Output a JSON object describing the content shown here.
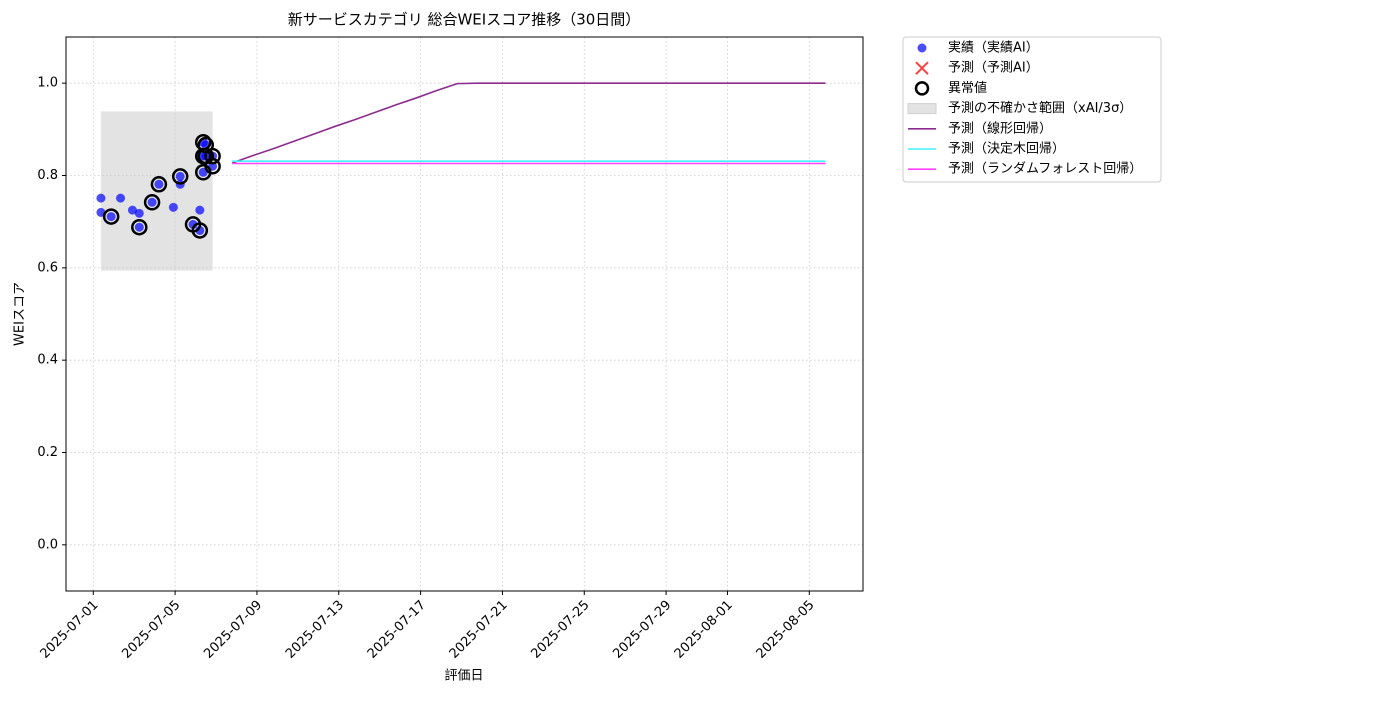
{
  "chart_data": {
    "type": "line",
    "title": "新サービスカテゴリ 総合WEIスコア推移（30日間）",
    "x_label": "評価日",
    "y_label": "WEIスコア",
    "xlim": [
      "2025-06-29T16:00",
      "2025-08-07T15:00"
    ],
    "ylim": [
      -0.1,
      1.1
    ],
    "xticks": [
      "2025-07-01",
      "2025-07-05",
      "2025-07-09",
      "2025-07-13",
      "2025-07-17",
      "2025-07-21",
      "2025-07-25",
      "2025-07-29",
      "2025-08-01",
      "2025-08-05"
    ],
    "yticks": [
      {
        "value": 0,
        "label": "0.0"
      },
      0.2,
      0.4,
      0.6,
      0.8,
      {
        "value": 1,
        "label": "1.0"
      }
    ],
    "grid": true,
    "legend": "outside upper right",
    "series": [
      {
        "name": "実績（実績AI）",
        "kind": "scatter",
        "color": "#0000ff",
        "x": [
          "2025-07-01T09:00",
          "2025-07-01T09:00",
          "2025-07-01T21:00",
          "2025-07-02T08:00",
          "2025-07-02T22:00",
          "2025-07-03T06:00",
          "2025-07-03T06:00",
          "2025-07-03T21:00",
          "2025-07-04T05:00",
          "2025-07-04T22:00",
          "2025-07-05T06:00",
          "2025-07-05T06:00",
          "2025-07-05T21:00",
          "2025-07-06T05:00",
          "2025-07-06T05:00",
          "2025-07-06T09:00",
          "2025-07-06T12:00",
          "2025-07-06T09:00",
          "2025-07-06T09:00",
          "2025-07-06T12:00",
          "2025-07-06T20:00",
          "2025-07-06T20:00"
        ],
        "values": [
          0.751,
          0.72,
          0.711,
          0.751,
          0.725,
          0.718,
          0.688,
          0.742,
          0.781,
          0.731,
          0.798,
          0.781,
          0.694,
          0.725,
          0.681,
          0.872,
          0.866,
          0.842,
          0.807,
          0.842,
          0.842,
          0.82
        ]
      },
      {
        "name": "予測（予測AI）",
        "kind": "cross",
        "color": "#ff0000",
        "x": [],
        "values": []
      },
      {
        "name": "異常値",
        "kind": "ring",
        "color": "#000000",
        "x": [
          "2025-07-01T21:00",
          "2025-07-03T06:00",
          "2025-07-03T21:00",
          "2025-07-04T05:00",
          "2025-07-05T06:00",
          "2025-07-05T21:00",
          "2025-07-06T05:00",
          "2025-07-06T09:00",
          "2025-07-06T12:00",
          "2025-07-06T09:00",
          "2025-07-06T09:00",
          "2025-07-06T12:00",
          "2025-07-06T20:00",
          "2025-07-06T20:00"
        ],
        "values": [
          0.711,
          0.688,
          0.742,
          0.781,
          0.798,
          0.694,
          0.681,
          0.872,
          0.866,
          0.842,
          0.807,
          0.842,
          0.842,
          0.82
        ]
      },
      {
        "name": "予測の不確かさ範囲（xAI/3σ）",
        "kind": "band",
        "color": "#e3e3e3",
        "x": [
          "2025-07-01T09:00",
          "2025-07-06T20:00"
        ],
        "lower": [
          0.594,
          0.594
        ],
        "upper": [
          0.939,
          0.939
        ]
      },
      {
        "name": "予測（線形回帰）",
        "kind": "line",
        "color": "#8e2b8e",
        "x": [
          "2025-07-07T19:00",
          "2025-07-08T19:00",
          "2025-07-09T19:00",
          "2025-07-10T19:00",
          "2025-07-11T19:00",
          "2025-07-12T19:00",
          "2025-07-13T19:00",
          "2025-07-14T19:00",
          "2025-07-15T19:00",
          "2025-07-16T19:00",
          "2025-07-17T19:00",
          "2025-07-18T19:00",
          "2025-07-19T19:00",
          "2025-07-20T19:00",
          "2025-07-21T19:00",
          "2025-07-22T19:00",
          "2025-07-23T19:00",
          "2025-07-24T19:00",
          "2025-07-25T19:00",
          "2025-07-26T19:00",
          "2025-07-27T19:00",
          "2025-07-28T19:00",
          "2025-07-29T19:00",
          "2025-07-30T19:00",
          "2025-07-31T19:00",
          "2025-08-01T19:00",
          "2025-08-02T19:00",
          "2025-08-03T19:00",
          "2025-08-04T19:00",
          "2025-08-05T19:00"
        ],
        "values": [
          0.827,
          0.843,
          0.858,
          0.874,
          0.89,
          0.906,
          0.921,
          0.937,
          0.953,
          0.968,
          0.984,
          0.999,
          1,
          1,
          1,
          1,
          1,
          1,
          1,
          1,
          1,
          1,
          1,
          1,
          1,
          1,
          1,
          1,
          1,
          1
        ]
      },
      {
        "name": "予測（決定木回帰）",
        "kind": "line",
        "color": "#40f0ff",
        "x": [
          "2025-07-07T19:00",
          "2025-07-08T19:00",
          "2025-07-09T19:00",
          "2025-07-10T19:00",
          "2025-07-11T19:00",
          "2025-07-12T19:00",
          "2025-07-13T19:00",
          "2025-07-14T19:00",
          "2025-07-15T19:00",
          "2025-07-16T19:00",
          "2025-07-17T19:00",
          "2025-07-18T19:00",
          "2025-07-19T19:00",
          "2025-07-20T19:00",
          "2025-07-21T19:00",
          "2025-07-22T19:00",
          "2025-07-23T19:00",
          "2025-07-24T19:00",
          "2025-07-25T19:00",
          "2025-07-26T19:00",
          "2025-07-27T19:00",
          "2025-07-28T19:00",
          "2025-07-29T19:00",
          "2025-07-30T19:00",
          "2025-07-31T19:00",
          "2025-08-01T19:00",
          "2025-08-02T19:00",
          "2025-08-03T19:00",
          "2025-08-04T19:00",
          "2025-08-05T19:00"
        ],
        "values": [
          0.831,
          0.831,
          0.831,
          0.831,
          0.831,
          0.831,
          0.831,
          0.831,
          0.831,
          0.831,
          0.831,
          0.831,
          0.831,
          0.831,
          0.831,
          0.831,
          0.831,
          0.831,
          0.831,
          0.831,
          0.831,
          0.831,
          0.831,
          0.831,
          0.831,
          0.831,
          0.831,
          0.831,
          0.831,
          0.831
        ]
      },
      {
        "name": "予測（ランダムフォレスト回帰）",
        "kind": "line",
        "color": "#ff40ff",
        "x": [
          "2025-07-07T19:00",
          "2025-07-08T19:00",
          "2025-07-09T19:00",
          "2025-07-10T19:00",
          "2025-07-11T19:00",
          "2025-07-12T19:00",
          "2025-07-13T19:00",
          "2025-07-14T19:00",
          "2025-07-15T19:00",
          "2025-07-16T19:00",
          "2025-07-17T19:00",
          "2025-07-18T19:00",
          "2025-07-19T19:00",
          "2025-07-20T19:00",
          "2025-07-21T19:00",
          "2025-07-22T19:00",
          "2025-07-23T19:00",
          "2025-07-24T19:00",
          "2025-07-25T19:00",
          "2025-07-26T19:00",
          "2025-07-27T19:00",
          "2025-07-28T19:00",
          "2025-07-29T19:00",
          "2025-07-30T19:00",
          "2025-07-31T19:00",
          "2025-08-01T19:00",
          "2025-08-02T19:00",
          "2025-08-03T19:00",
          "2025-08-04T19:00",
          "2025-08-05T19:00"
        ],
        "values": [
          0.826,
          0.826,
          0.826,
          0.826,
          0.826,
          0.826,
          0.826,
          0.826,
          0.826,
          0.826,
          0.826,
          0.826,
          0.826,
          0.826,
          0.826,
          0.826,
          0.826,
          0.826,
          0.826,
          0.826,
          0.826,
          0.826,
          0.826,
          0.826,
          0.826,
          0.826,
          0.826,
          0.826,
          0.826,
          0.826
        ]
      }
    ]
  }
}
